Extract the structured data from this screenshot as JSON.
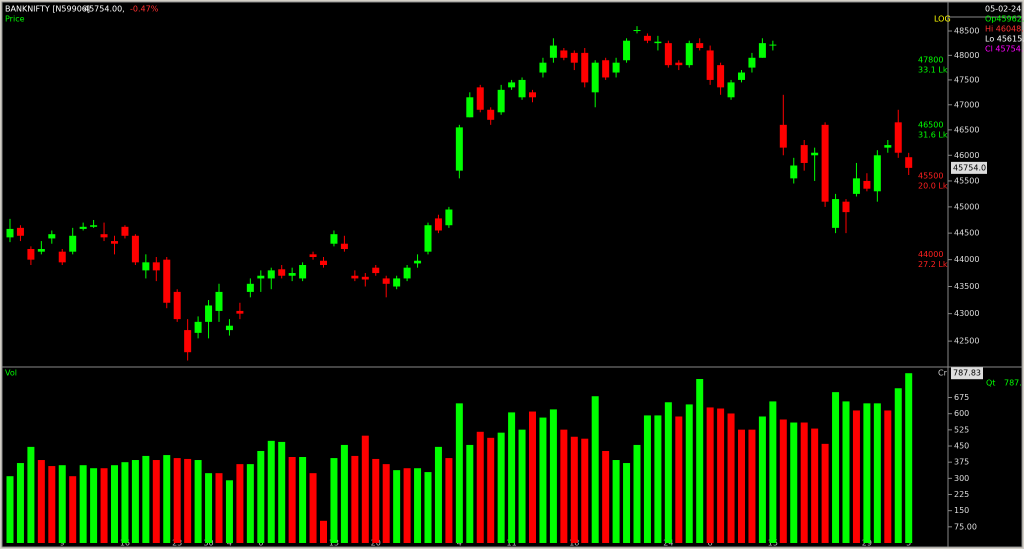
{
  "chart_data": [
    {
      "type": "candlestick",
      "symbol": "BANKNIFTY [N59906]",
      "last": "45754.00,",
      "change": "-0.47%",
      "pane_label": "Price",
      "scale_label": "LOG",
      "info": [
        {
          "text": "05-02-24 (",
          "color": "#ffffff"
        },
        {
          "text": "Op45962.",
          "color": "#00ff00"
        },
        {
          "text": "Hi 46048.",
          "color": "#ff3030"
        },
        {
          "text": "Lo 45615.",
          "color": "#ffffff"
        },
        {
          "text": "Cl 45754.",
          "color": "#ff00ff"
        }
      ],
      "categories": [
        null,
        null,
        null,
        null,
        null,
        "9",
        null,
        null,
        null,
        null,
        null,
        "16",
        null,
        null,
        null,
        null,
        "23",
        null,
        null,
        "30",
        null,
        "4",
        null,
        null,
        "6",
        null,
        null,
        null,
        null,
        null,
        null,
        "13",
        null,
        null,
        null,
        "20",
        null,
        null,
        null,
        null,
        null,
        null,
        null,
        "4",
        null,
        null,
        null,
        null,
        "11",
        null,
        null,
        null,
        null,
        null,
        "18",
        null,
        null,
        null,
        null,
        null,
        null,
        null,
        null,
        "24",
        null,
        null,
        null,
        "8",
        null,
        null,
        null,
        null,
        null,
        "15",
        null,
        null,
        null,
        null,
        null,
        null,
        null,
        null,
        "29",
        null,
        null,
        null,
        "5"
      ],
      "open": [
        44420,
        44600,
        44200,
        44150,
        44400,
        44150,
        44150,
        44580,
        44620,
        44480,
        44350,
        44620,
        44450,
        43800,
        43950,
        44000,
        43400,
        42700,
        42650,
        42850,
        43050,
        42700,
        43050,
        43400,
        43650,
        43650,
        43820,
        43700,
        43650,
        44100,
        43980,
        44300,
        44300,
        43700,
        43680,
        43850,
        43650,
        43500,
        43650,
        43930,
        44150,
        44780,
        44650,
        45700,
        46750,
        47350,
        46900,
        46850,
        47350,
        47150,
        47250,
        47650,
        47950,
        48100,
        48050,
        48050,
        47250,
        47900,
        47650,
        47900,
        48500,
        48400,
        48250,
        48250,
        47850,
        47800,
        48250,
        48100,
        47800,
        47150,
        47500,
        47750,
        47950,
        48200,
        46600,
        45550,
        46200,
        46000,
        46600,
        44600,
        45100,
        45250,
        45500,
        45300,
        46150,
        46650,
        45962
      ],
      "high": [
        44770,
        44650,
        44250,
        44350,
        44550,
        44200,
        44600,
        44700,
        44750,
        44700,
        44450,
        44650,
        44480,
        44100,
        44050,
        44050,
        43450,
        42900,
        42950,
        43250,
        43550,
        42900,
        43200,
        43650,
        43800,
        43850,
        43900,
        43850,
        43950,
        44150,
        44050,
        44550,
        44450,
        43800,
        43750,
        43900,
        43700,
        43700,
        43900,
        44100,
        44700,
        44850,
        45000,
        46600,
        47250,
        47400,
        46950,
        47400,
        47500,
        47550,
        47300,
        47950,
        48350,
        48150,
        48100,
        48150,
        47900,
        47950,
        47950,
        48350,
        48600,
        48450,
        48400,
        48300,
        47900,
        48300,
        48350,
        48200,
        47850,
        47500,
        47700,
        48050,
        48350,
        48300,
        47200,
        45950,
        46300,
        46150,
        46650,
        45250,
        45150,
        45850,
        45650,
        46100,
        46300,
        46900,
        46048
      ],
      "low": [
        44330,
        44350,
        43900,
        44100,
        44300,
        43900,
        44100,
        44550,
        44600,
        44350,
        44100,
        44400,
        43900,
        43650,
        43600,
        43100,
        42850,
        42150,
        42550,
        42550,
        42850,
        42600,
        42900,
        43300,
        43400,
        43450,
        43650,
        43600,
        43600,
        44000,
        43850,
        44250,
        44150,
        43600,
        43500,
        43700,
        43300,
        43450,
        43600,
        43850,
        44100,
        44500,
        44600,
        45550,
        46750,
        46850,
        46600,
        46800,
        47300,
        47100,
        47050,
        47550,
        47850,
        47900,
        47700,
        47350,
        46950,
        47500,
        47550,
        47850,
        48450,
        48250,
        48100,
        47750,
        47700,
        47750,
        48100,
        47400,
        47200,
        47100,
        47450,
        47650,
        47950,
        48100,
        46000,
        45450,
        45700,
        45500,
        45000,
        44500,
        44500,
        45200,
        45300,
        45100,
        46050,
        45950,
        45615
      ],
      "close": [
        44580,
        44450,
        44000,
        44200,
        44480,
        43950,
        44450,
        44620,
        44650,
        44420,
        44300,
        44450,
        43950,
        43950,
        43800,
        43200,
        42900,
        42300,
        42850,
        43150,
        43400,
        42780,
        43000,
        43550,
        43700,
        43800,
        43700,
        43750,
        43900,
        44050,
        43900,
        44480,
        44200,
        43650,
        43630,
        43750,
        43550,
        43650,
        43850,
        43980,
        44650,
        44550,
        44950,
        46550,
        47150,
        46900,
        46700,
        47300,
        47450,
        47500,
        47150,
        47850,
        48200,
        47950,
        47850,
        47450,
        47850,
        47550,
        47850,
        48300,
        48520,
        48300,
        48280,
        47800,
        47800,
        48250,
        48150,
        47500,
        47350,
        47450,
        47650,
        47950,
        48250,
        48220,
        46150,
        45800,
        45850,
        46050,
        45100,
        45150,
        44900,
        45550,
        45350,
        46000,
        46200,
        46050,
        45754
      ],
      "up_color": "#00ff00",
      "down_color": "#ff0000",
      "log_scale": true,
      "ylim": [
        42070,
        49040
      ],
      "yticks": [
        42500,
        43000,
        43500,
        44000,
        44500,
        45000,
        45500,
        46000,
        46500,
        47000,
        47500,
        48000,
        48500
      ],
      "annotations": [
        {
          "value": 47800,
          "text": "33.1 Lk",
          "color": "#00ff00"
        },
        {
          "value": 46500,
          "text": "31.6 Lk",
          "color": "#00ff00"
        },
        {
          "value": 45500,
          "text": "20.0 Lk",
          "color": "#ff2020"
        },
        {
          "value": 44000,
          "text": "27.2 Lk",
          "color": "#ff2020"
        }
      ],
      "last_marker": {
        "value": 45754,
        "label": "45754.0"
      }
    },
    {
      "type": "bar",
      "pane_label": "Vol",
      "unit_label": "Cr",
      "qt_label": "Qt",
      "qt_value": "787.",
      "values": [
        310,
        371,
        446,
        385,
        357,
        361,
        310,
        361,
        347,
        347,
        361,
        375,
        385,
        404,
        385,
        408,
        394,
        390,
        385,
        324,
        324,
        291,
        366,
        366,
        427,
        474,
        469,
        399,
        399,
        324,
        103,
        394,
        455,
        404,
        498,
        390,
        366,
        338,
        347,
        347,
        329,
        446,
        394,
        648,
        455,
        516,
        488,
        512,
        606,
        526,
        610,
        582,
        620,
        526,
        493,
        484,
        681,
        427,
        385,
        371,
        455,
        592,
        592,
        653,
        587,
        643,
        761,
        629,
        624,
        601,
        526,
        526,
        587,
        657,
        573,
        559,
        559,
        531,
        460,
        700,
        657,
        615,
        648,
        648,
        615,
        718,
        787.83
      ],
      "colors": [
        "#00ff00",
        "#00ff00",
        "#00ff00",
        "#ff0000",
        "#ff0000",
        "#00ff00",
        "#ff0000",
        "#00ff00",
        "#00ff00",
        "#ff0000",
        "#00ff00",
        "#00ff00",
        "#00ff00",
        "#00ff00",
        "#ff0000",
        "#00ff00",
        "#ff0000",
        "#ff0000",
        "#00ff00",
        "#00ff00",
        "#ff0000",
        "#00ff00",
        "#ff0000",
        "#00ff00",
        "#00ff00",
        "#00ff00",
        "#00ff00",
        "#ff0000",
        "#00ff00",
        "#ff0000",
        "#ff0000",
        "#00ff00",
        "#00ff00",
        "#ff0000",
        "#ff0000",
        "#ff0000",
        "#ff0000",
        "#00ff00",
        "#ff0000",
        "#00ff00",
        "#00ff00",
        "#00ff00",
        "#ff0000",
        "#00ff00",
        "#00ff00",
        "#ff0000",
        "#ff0000",
        "#00ff00",
        "#00ff00",
        "#00ff00",
        "#ff0000",
        "#00ff00",
        "#00ff00",
        "#ff0000",
        "#ff0000",
        "#ff0000",
        "#00ff00",
        "#ff0000",
        "#00ff00",
        "#00ff00",
        "#00ff00",
        "#00ff00",
        "#00ff00",
        "#00ff00",
        "#ff0000",
        "#00ff00",
        "#00ff00",
        "#ff0000",
        "#ff0000",
        "#ff0000",
        "#ff0000",
        "#ff0000",
        "#00ff00",
        "#00ff00",
        "#ff0000",
        "#00ff00",
        "#ff0000",
        "#ff0000",
        "#ff0000",
        "#00ff00",
        "#00ff00",
        "#ff0000",
        "#00ff00",
        "#00ff00",
        "#ff0000",
        "#00ff00",
        "#00ff00"
      ],
      "ylim": [
        0,
        812
      ],
      "yticks": [
        {
          "value": 75,
          "label": "75.00"
        },
        150,
        225,
        300,
        375,
        450,
        525,
        600,
        675
      ],
      "last_marker": {
        "value": 787.83
      }
    }
  ]
}
